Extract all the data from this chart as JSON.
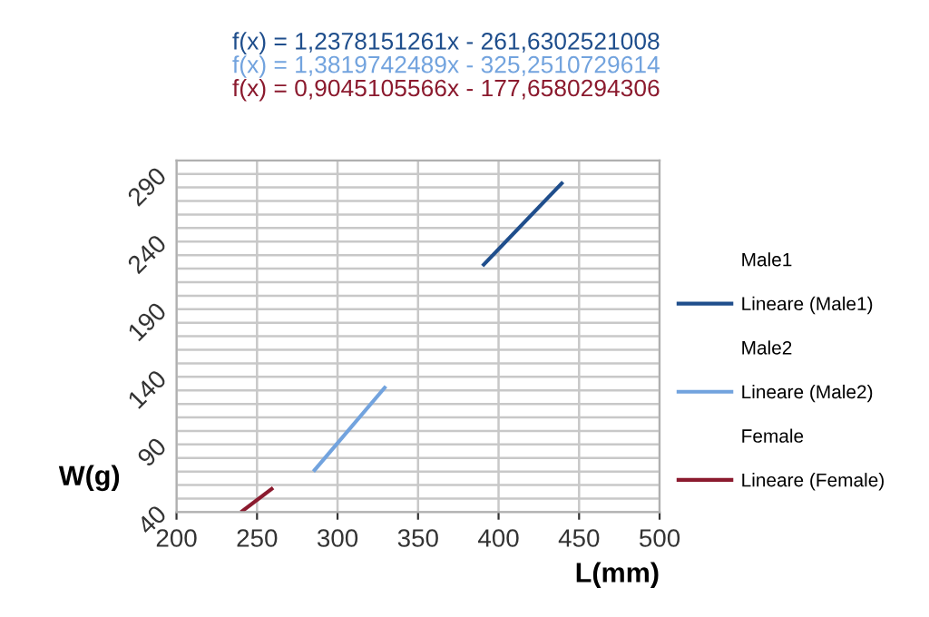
{
  "chart_data": {
    "type": "line",
    "xlabel": "L(mm)",
    "ylabel": "W(g)",
    "annotations": [
      "f(x) = 1,2378151261x - 261,6302521008",
      "f(x) = 1,3819742489x - 325,2510729614",
      "f(x) = 0,9045105566x - 177,6580294306"
    ],
    "series": [
      {
        "name": "Male1",
        "type": "scatter",
        "marker": "none"
      },
      {
        "name": "Lineare (Male1)",
        "color": "#1f4e8c",
        "x": [
          390,
          440
        ],
        "values": [
          222,
          284
        ]
      },
      {
        "name": "Male2",
        "type": "scatter",
        "marker": "none"
      },
      {
        "name": "Lineare (Male2)",
        "color": "#72a3de",
        "x": [
          285,
          330
        ],
        "values": [
          70,
          133
        ]
      },
      {
        "name": "Female",
        "type": "scatter",
        "marker": "none"
      },
      {
        "name": "Lineare (Female)",
        "color": "#8b1a2e",
        "x": [
          240,
          260
        ],
        "values": [
          40,
          58
        ]
      }
    ],
    "xlim": [
      200,
      500
    ],
    "xticks": [
      200,
      250,
      300,
      350,
      400,
      450,
      500
    ],
    "ylim": [
      40,
      300
    ],
    "yticks": [
      40,
      {
        "value": 50,
        "label": null
      },
      {
        "value": 60,
        "label": null
      },
      {
        "value": 70,
        "label": null
      },
      {
        "value": 80,
        "label": null
      },
      90,
      {
        "value": 100,
        "label": null
      },
      {
        "value": 110,
        "label": null
      },
      {
        "value": 120,
        "label": null
      },
      {
        "value": 130,
        "label": null
      },
      140,
      {
        "value": 150,
        "label": null
      },
      {
        "value": 160,
        "label": null
      },
      {
        "value": 170,
        "label": null
      },
      {
        "value": 180,
        "label": null
      },
      190,
      {
        "value": 200,
        "label": null
      },
      {
        "value": 210,
        "label": null
      },
      {
        "value": 220,
        "label": null
      },
      {
        "value": 230,
        "label": null
      },
      240,
      {
        "value": 250,
        "label": null
      },
      {
        "value": 260,
        "label": null
      },
      {
        "value": 270,
        "label": null
      },
      {
        "value": 280,
        "label": null
      },
      290,
      {
        "value": 300,
        "label": null
      }
    ],
    "grid": true,
    "legend": "right",
    "marker": "none",
    "line_style": "solid"
  }
}
